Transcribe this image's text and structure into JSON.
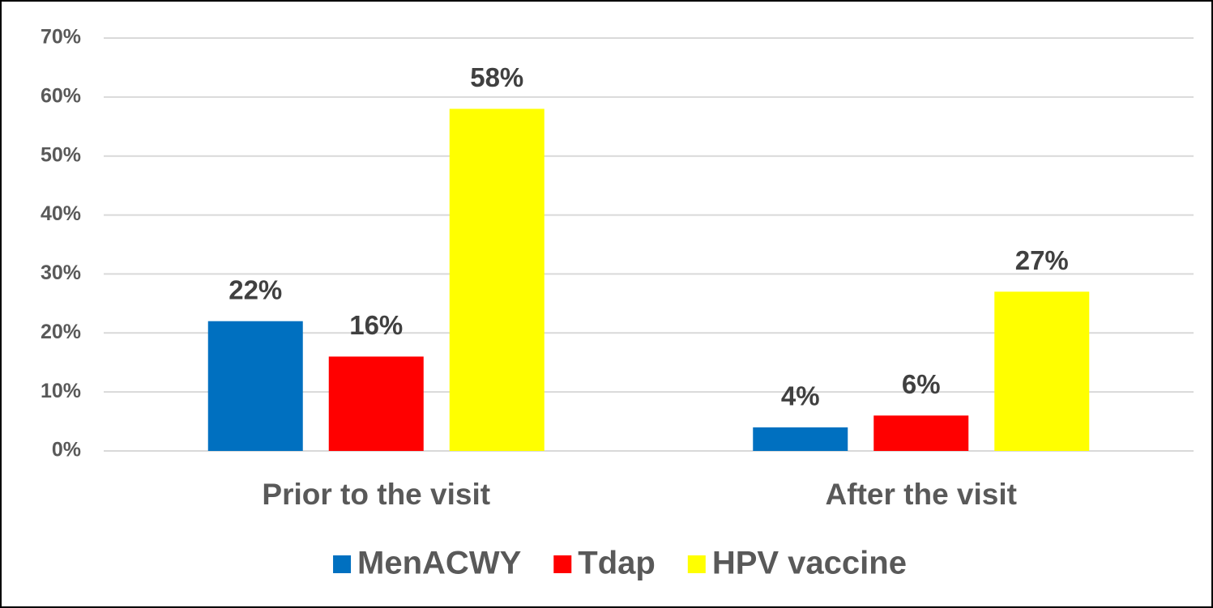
{
  "chart_data": {
    "type": "bar",
    "categories": [
      "Prior to the visit",
      "After the visit"
    ],
    "series": [
      {
        "name": "MenACWY",
        "color": "#0070c0",
        "values": [
          22,
          4
        ],
        "value_labels": [
          "22%",
          "4%"
        ]
      },
      {
        "name": "Tdap",
        "color": "#ff0000",
        "values": [
          16,
          6
        ],
        "value_labels": [
          "16%",
          "6%"
        ]
      },
      {
        "name": "HPV vaccine",
        "color": "#ffff00",
        "values": [
          58,
          27
        ],
        "value_labels": [
          "58%",
          "27%"
        ]
      }
    ],
    "ylim": [
      0,
      70
    ],
    "yticks": [
      {
        "value": 0,
        "label": "0%"
      },
      {
        "value": 10,
        "label": "10%"
      },
      {
        "value": 20,
        "label": "20%"
      },
      {
        "value": 30,
        "label": "30%"
      },
      {
        "value": 40,
        "label": "40%"
      },
      {
        "value": 50,
        "label": "50%"
      },
      {
        "value": 60,
        "label": "60%"
      },
      {
        "value": 70,
        "label": "70%"
      }
    ],
    "grid": true,
    "legend": "bottom"
  }
}
